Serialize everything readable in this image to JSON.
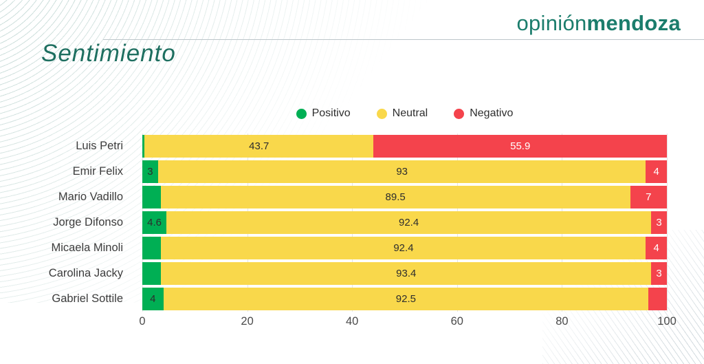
{
  "header": {
    "logo_regular": "opinión",
    "logo_bold": "mendoza",
    "title": "Sentimiento"
  },
  "colors": {
    "brand_teal": "#1b7d6c",
    "title_teal": "#1e6f60",
    "positive": "#00af54",
    "neutral": "#f9d84b",
    "negative": "#f4434c"
  },
  "legend": [
    {
      "label": "Positivo",
      "color": "#00af54"
    },
    {
      "label": "Neutral",
      "color": "#f9d84b"
    },
    {
      "label": "Negativo",
      "color": "#f4434c"
    }
  ],
  "chart_data": {
    "type": "bar",
    "orientation": "horizontal",
    "stacked": true,
    "title": "Sentimiento",
    "categories": [
      "Luis Petri",
      "Emir Felix",
      "Mario Vadillo",
      "Jorge Difonso",
      "Micaela Minoli",
      "Carolina Jacky",
      "Gabriel Sottile"
    ],
    "series": [
      {
        "name": "Positivo",
        "color": "#00af54",
        "values": [
          0.4,
          3,
          3.5,
          4.6,
          3.6,
          3.6,
          4
        ],
        "labels": [
          "",
          "3",
          "",
          "4.6",
          "",
          "",
          "4"
        ],
        "label_style": "dark"
      },
      {
        "name": "Neutral",
        "color": "#f9d84b",
        "values": [
          43.7,
          93,
          89.5,
          92.4,
          92.4,
          93.4,
          92.5
        ],
        "labels": [
          "43.7",
          "93",
          "89.5",
          "92.4",
          "92.4",
          "93.4",
          "92.5"
        ],
        "label_style": "dark"
      },
      {
        "name": "Negativo",
        "color": "#f4434c",
        "values": [
          55.9,
          4,
          7,
          3,
          4,
          3,
          3.5
        ],
        "labels": [
          "55.9",
          "4",
          "7",
          "3",
          "4",
          "3",
          ""
        ],
        "label_style": "light"
      }
    ],
    "x_ticks": [
      "0",
      "20",
      "40",
      "60",
      "80",
      "100"
    ],
    "xlim": [
      0,
      100
    ],
    "grid": true,
    "legend_position": "top-center"
  }
}
